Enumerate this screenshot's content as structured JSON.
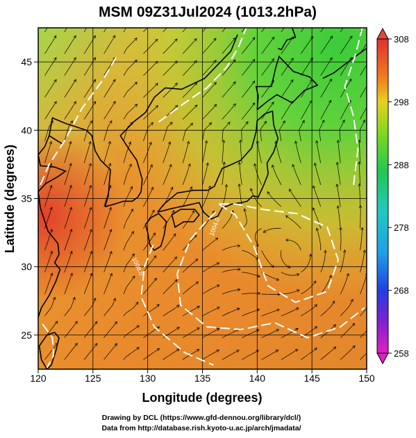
{
  "title": "MSM 09Z31Jul2024 (1013.2hPa)",
  "xaxis": {
    "label": "Longitude (degrees)",
    "range": [
      120,
      150
    ],
    "ticks": [
      "120",
      "125",
      "130",
      "135",
      "140",
      "145",
      "150"
    ]
  },
  "yaxis": {
    "label": "Latitude  (degrees)",
    "range": [
      22.5,
      47.5
    ],
    "ticks": [
      "25",
      "30",
      "35",
      "40",
      "45"
    ]
  },
  "colorbar": {
    "min": 258,
    "max": 308,
    "ticks": [
      "308",
      "298",
      "288",
      "278",
      "268",
      "258"
    ]
  },
  "contours": {
    "labels": [
      "1004.0",
      "1008.0"
    ]
  },
  "credits": {
    "line1": "Drawing by DCL (https://www.gfd-dennou.org/library/dcl/)",
    "line2": "Data from http://database.rish.kyoto-u.ac.jp/arch/jmadata/"
  }
}
